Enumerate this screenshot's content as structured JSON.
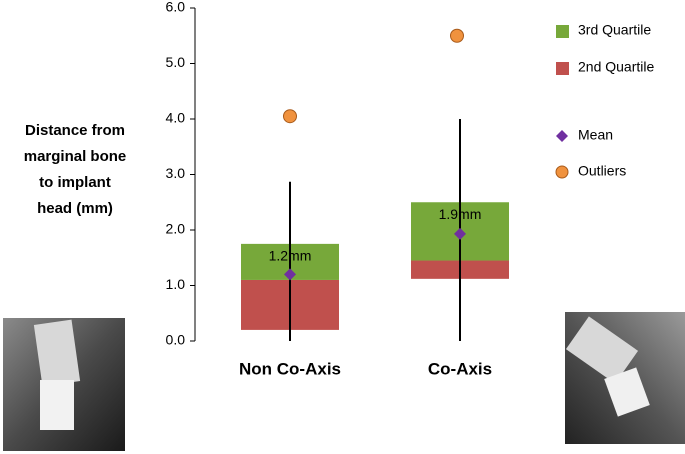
{
  "chart_data": {
    "type": "box",
    "y_label": [
      "Distance from",
      "marginal bone",
      "to implant",
      "head (mm)"
    ],
    "categories": [
      "Non Co-Axis",
      "Co-Axis"
    ],
    "ylim": [
      0,
      6
    ],
    "yticks": [
      {
        "value": 0,
        "label": "0.0"
      },
      {
        "value": 1,
        "label": "1.0"
      },
      {
        "value": 2,
        "label": "2.0"
      },
      {
        "value": 3,
        "label": "3.0"
      },
      {
        "value": 4,
        "label": "4.0"
      },
      {
        "value": 5,
        "label": "5.0"
      },
      {
        "value": 6,
        "label": "6.0"
      }
    ],
    "whisker_low": [
      0,
      0
    ],
    "q1": [
      0.2,
      1.12
    ],
    "median": [
      1.1,
      1.45
    ],
    "q3": [
      1.75,
      2.5
    ],
    "whisker_high": [
      2.87,
      4.0
    ],
    "mean": {
      "values": [
        1.2,
        1.93
      ],
      "value_labels": [
        "1.2mm",
        "1.9mm"
      ]
    },
    "outliers": {
      "values": [
        4.05,
        5.5
      ]
    },
    "legend_position": "right",
    "legend": [
      {
        "name": "3rd Quartile",
        "color": "#77a83a"
      },
      {
        "name": "2nd Quartile",
        "color": "#c0504d"
      },
      {
        "name": "Mean",
        "color": "#7030a0"
      },
      {
        "name": "Outliers",
        "color": "#f0923e"
      }
    ]
  }
}
